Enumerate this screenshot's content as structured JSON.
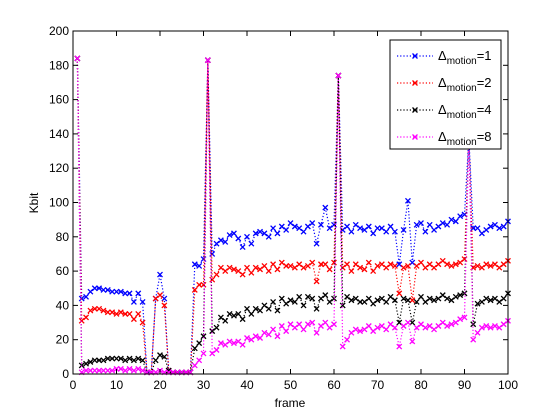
{
  "chart_data": {
    "type": "line",
    "title": "",
    "xlabel": "frame",
    "ylabel": "Kbit",
    "xlim": [
      0,
      100
    ],
    "ylim": [
      0,
      200
    ],
    "xticks": [
      0,
      10,
      20,
      30,
      40,
      50,
      60,
      70,
      80,
      90,
      100
    ],
    "yticks": [
      0,
      20,
      40,
      60,
      80,
      100,
      120,
      140,
      160,
      180,
      200
    ],
    "grid": false,
    "legend_position": "top-right",
    "marker": "x",
    "line_style": "dotted",
    "x": [
      1,
      2,
      3,
      4,
      5,
      6,
      7,
      8,
      9,
      10,
      11,
      12,
      13,
      14,
      15,
      16,
      17,
      18,
      19,
      20,
      21,
      22,
      23,
      24,
      25,
      26,
      27,
      28,
      29,
      30,
      31,
      32,
      33,
      34,
      35,
      36,
      37,
      38,
      39,
      40,
      41,
      42,
      43,
      44,
      45,
      46,
      47,
      48,
      49,
      50,
      51,
      52,
      53,
      54,
      55,
      56,
      57,
      58,
      59,
      60,
      61,
      62,
      63,
      64,
      65,
      66,
      67,
      68,
      69,
      70,
      71,
      72,
      73,
      74,
      75,
      76,
      77,
      78,
      79,
      80,
      81,
      82,
      83,
      84,
      85,
      86,
      87,
      88,
      89,
      90,
      91,
      92,
      93,
      94,
      95,
      96,
      97,
      98,
      99,
      100
    ],
    "series": [
      {
        "name": "Δmotion=1",
        "label_main": "Δ",
        "label_sub": "motion",
        "label_suffix": "=1",
        "color": "#0000ff",
        "values": [
          184,
          44,
          45,
          48,
          50,
          50,
          49,
          49,
          48,
          48,
          48,
          47,
          47,
          42,
          47,
          42,
          1,
          1,
          44,
          58,
          44,
          2,
          1,
          1,
          1,
          1,
          1,
          64,
          63,
          67,
          183,
          70,
          76,
          78,
          77,
          81,
          82,
          79,
          74,
          80,
          76,
          82,
          83,
          82,
          80,
          85,
          82,
          86,
          84,
          88,
          86,
          85,
          83,
          86,
          88,
          76,
          87,
          97,
          85,
          87,
          174,
          84,
          86,
          83,
          87,
          85,
          84,
          86,
          82,
          85,
          85,
          83,
          86,
          83,
          64,
          84,
          101,
          65,
          87,
          88,
          83,
          87,
          84,
          86,
          88,
          87,
          90,
          89,
          92,
          93,
          138,
          85,
          85,
          82,
          84,
          86,
          87,
          85,
          86,
          89
        ]
      },
      {
        "name": "Δmotion=2",
        "label_main": "Δ",
        "label_sub": "motion",
        "label_suffix": "=2",
        "color": "#ff0000",
        "values": [
          184,
          31,
          33,
          37,
          38,
          38,
          37,
          36,
          36,
          35,
          36,
          35,
          35,
          32,
          35,
          30,
          1,
          1,
          44,
          46,
          40,
          2,
          1,
          1,
          1,
          1,
          1,
          49,
          52,
          52,
          183,
          55,
          58,
          62,
          60,
          62,
          61,
          60,
          58,
          62,
          59,
          62,
          61,
          63,
          60,
          64,
          61,
          65,
          63,
          63,
          62,
          64,
          62,
          63,
          65,
          54,
          64,
          64,
          61,
          65,
          174,
          62,
          64,
          60,
          64,
          62,
          61,
          65,
          60,
          63,
          64,
          62,
          64,
          63,
          47,
          62,
          63,
          43,
          63,
          65,
          62,
          64,
          62,
          64,
          66,
          64,
          63,
          64,
          65,
          67,
          138,
          62,
          63,
          62,
          64,
          63,
          64,
          62,
          64,
          66
        ]
      },
      {
        "name": "Δmotion=4",
        "label_main": "Δ",
        "label_sub": "motion",
        "label_suffix": "=4",
        "color": "#000000",
        "values": [
          184,
          5,
          6,
          7,
          8,
          8,
          8,
          9,
          9,
          9,
          9,
          8,
          9,
          8,
          9,
          8,
          1,
          1,
          8,
          11,
          10,
          2,
          1,
          1,
          1,
          1,
          1,
          15,
          18,
          22,
          183,
          25,
          27,
          33,
          31,
          35,
          34,
          35,
          32,
          38,
          35,
          38,
          37,
          40,
          38,
          42,
          37,
          44,
          41,
          43,
          42,
          45,
          40,
          45,
          44,
          38,
          44,
          46,
          42,
          44,
          174,
          40,
          45,
          43,
          44,
          42,
          42,
          44,
          41,
          43,
          44,
          42,
          45,
          43,
          30,
          44,
          43,
          30,
          42,
          45,
          42,
          44,
          43,
          44,
          46,
          44,
          43,
          45,
          46,
          47,
          138,
          29,
          41,
          42,
          44,
          43,
          44,
          42,
          44,
          47
        ]
      },
      {
        "name": "Δmotion=8",
        "label_main": "Δ",
        "label_sub": "motion",
        "label_suffix": "=8",
        "color": "#ff00ff",
        "values": [
          184,
          1,
          2,
          2,
          2,
          2,
          2,
          2,
          2,
          3,
          3,
          2,
          3,
          2,
          3,
          2,
          1,
          1,
          1,
          2,
          1,
          1,
          1,
          1,
          1,
          1,
          1,
          5,
          8,
          12,
          183,
          12,
          14,
          18,
          17,
          19,
          18,
          19,
          17,
          21,
          20,
          22,
          21,
          24,
          23,
          26,
          22,
          28,
          25,
          29,
          27,
          29,
          26,
          29,
          30,
          24,
          28,
          30,
          27,
          29,
          174,
          16,
          20,
          24,
          26,
          25,
          26,
          28,
          25,
          27,
          28,
          26,
          29,
          27,
          16,
          28,
          30,
          19,
          27,
          29,
          27,
          28,
          26,
          28,
          30,
          28,
          29,
          30,
          32,
          33,
          138,
          20,
          24,
          27,
          28,
          27,
          28,
          27,
          29,
          31
        ]
      }
    ]
  }
}
